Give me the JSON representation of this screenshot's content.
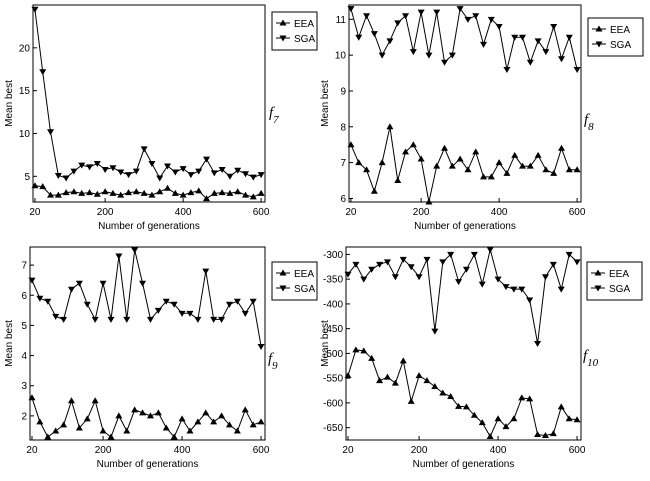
{
  "colors": {
    "line": "#000000",
    "background": "#ffffff"
  },
  "chart_data": [
    {
      "type": "line",
      "function_label": {
        "base": "f",
        "sub": "7"
      },
      "xlabel": "Number of generations",
      "ylabel": "Mean best",
      "xlim": [
        15,
        610
      ],
      "ylim": [
        2.0,
        25.0
      ],
      "xticks": [
        20,
        200,
        400,
        600
      ],
      "yticks": [
        5,
        10,
        15,
        20
      ],
      "legend_position": "outside-top-right",
      "x": [
        20,
        40,
        60,
        80,
        100,
        120,
        140,
        160,
        180,
        200,
        220,
        240,
        260,
        280,
        300,
        320,
        340,
        360,
        380,
        400,
        420,
        440,
        460,
        480,
        500,
        520,
        540,
        560,
        580,
        600
      ],
      "series": [
        {
          "name": "EEA",
          "marker": "triangle-up",
          "values": [
            3.9,
            3.8,
            2.8,
            2.8,
            3.1,
            3.2,
            3.0,
            3.1,
            2.9,
            3.2,
            3.0,
            2.8,
            3.1,
            3.2,
            3.0,
            2.8,
            3.2,
            3.6,
            3.0,
            2.8,
            3.1,
            3.3,
            2.4,
            3.0,
            3.1,
            3.0,
            3.2,
            2.8,
            2.6,
            3.0
          ]
        },
        {
          "name": "SGA",
          "marker": "triangle-down",
          "values": [
            24.5,
            17.2,
            10.2,
            5.1,
            4.8,
            5.6,
            6.3,
            6.1,
            6.5,
            5.8,
            6.0,
            5.5,
            5.2,
            5.6,
            8.2,
            6.5,
            4.8,
            6.2,
            5.5,
            5.9,
            5.2,
            5.6,
            7.0,
            5.4,
            5.8,
            5.0,
            5.7,
            5.3,
            4.9,
            5.2
          ]
        }
      ]
    },
    {
      "type": "line",
      "function_label": {
        "base": "f",
        "sub": "8"
      },
      "xlabel": "Number of generations",
      "ylabel": "Mean best",
      "xlim": [
        15,
        610
      ],
      "ylim": [
        5.9,
        11.4
      ],
      "xticks": [
        20,
        200,
        400,
        600
      ],
      "yticks": [
        6,
        7,
        8,
        9,
        10,
        11
      ],
      "legend_position": "outside-top-right",
      "x": [
        20,
        40,
        60,
        80,
        100,
        120,
        140,
        160,
        180,
        200,
        220,
        240,
        260,
        280,
        300,
        320,
        340,
        360,
        380,
        400,
        420,
        440,
        460,
        480,
        500,
        520,
        540,
        560,
        580,
        600
      ],
      "series": [
        {
          "name": "EEA",
          "marker": "triangle-up",
          "values": [
            7.5,
            7.0,
            6.8,
            6.2,
            7.0,
            8.0,
            6.5,
            7.3,
            7.5,
            7.1,
            5.9,
            6.9,
            7.4,
            6.9,
            7.1,
            6.8,
            7.3,
            6.6,
            6.6,
            7.0,
            6.7,
            7.2,
            6.9,
            6.9,
            7.2,
            6.8,
            6.7,
            7.4,
            6.8,
            6.8
          ]
        },
        {
          "name": "SGA",
          "marker": "triangle-down",
          "values": [
            11.3,
            10.5,
            11.1,
            10.6,
            10.0,
            10.4,
            10.9,
            11.1,
            10.1,
            11.2,
            10.0,
            11.2,
            9.8,
            10.0,
            11.3,
            11.0,
            11.1,
            10.3,
            11.0,
            10.8,
            9.6,
            10.5,
            10.5,
            9.8,
            10.4,
            10.1,
            10.8,
            9.9,
            10.5,
            9.6
          ]
        }
      ]
    },
    {
      "type": "line",
      "function_label": {
        "base": "f",
        "sub": "9"
      },
      "xlabel": "Number of generations",
      "ylabel": "Mean best",
      "xlim": [
        15,
        610
      ],
      "ylim": [
        1.2,
        7.6
      ],
      "xticks": [
        20,
        200,
        400,
        600
      ],
      "yticks": [
        2,
        3,
        4,
        5,
        6,
        7
      ],
      "legend_position": "outside-top-right",
      "x": [
        20,
        40,
        60,
        80,
        100,
        120,
        140,
        160,
        180,
        200,
        220,
        240,
        260,
        280,
        300,
        320,
        340,
        360,
        380,
        400,
        420,
        440,
        460,
        480,
        500,
        520,
        540,
        560,
        580,
        600
      ],
      "series": [
        {
          "name": "EEA",
          "marker": "triangle-up",
          "values": [
            2.6,
            1.8,
            1.3,
            1.5,
            1.7,
            2.5,
            1.6,
            1.9,
            2.5,
            1.5,
            1.3,
            2.0,
            1.5,
            2.2,
            2.1,
            2.0,
            2.1,
            1.6,
            1.3,
            1.9,
            1.5,
            1.8,
            2.1,
            1.8,
            2.0,
            1.7,
            1.5,
            2.2,
            1.7,
            1.8
          ]
        },
        {
          "name": "SGA",
          "marker": "triangle-down",
          "values": [
            6.5,
            5.9,
            5.8,
            5.3,
            5.2,
            6.2,
            6.4,
            5.7,
            5.2,
            6.4,
            5.2,
            7.3,
            5.2,
            7.5,
            6.4,
            5.2,
            5.5,
            5.8,
            5.7,
            5.4,
            5.4,
            5.2,
            6.8,
            5.2,
            5.2,
            5.7,
            5.8,
            5.4,
            5.8,
            4.3
          ]
        }
      ]
    },
    {
      "type": "line",
      "function_label": {
        "base": "f",
        "sub": "10"
      },
      "xlabel": "Number of generations",
      "ylabel": "Mean best",
      "xlim": [
        15,
        610
      ],
      "ylim": [
        -675,
        -285
      ],
      "xticks": [
        20,
        200,
        400,
        600
      ],
      "yticks": [
        -650,
        -600,
        -550,
        -500,
        -450,
        -400,
        -350,
        -300
      ],
      "legend_position": "outside-top-right",
      "x": [
        20,
        40,
        60,
        80,
        100,
        120,
        140,
        160,
        180,
        200,
        220,
        240,
        260,
        280,
        300,
        320,
        340,
        360,
        380,
        400,
        420,
        440,
        460,
        480,
        500,
        520,
        540,
        560,
        580,
        600
      ],
      "series": [
        {
          "name": "EEA",
          "marker": "triangle-up",
          "values": [
            -545,
            -493,
            -495,
            -510,
            -555,
            -548,
            -560,
            -515,
            -597,
            -545,
            -555,
            -567,
            -580,
            -587,
            -607,
            -608,
            -625,
            -640,
            -668,
            -632,
            -648,
            -632,
            -590,
            -592,
            -664,
            -666,
            -662,
            -608,
            -632,
            -634
          ]
        },
        {
          "name": "SGA",
          "marker": "triangle-down",
          "values": [
            -340,
            -320,
            -350,
            -330,
            -320,
            -315,
            -345,
            -310,
            -325,
            -345,
            -310,
            -455,
            -315,
            -300,
            -355,
            -330,
            -300,
            -360,
            -290,
            -350,
            -365,
            -370,
            -370,
            -392,
            -480,
            -345,
            -320,
            -370,
            -300,
            -315
          ]
        }
      ]
    }
  ]
}
